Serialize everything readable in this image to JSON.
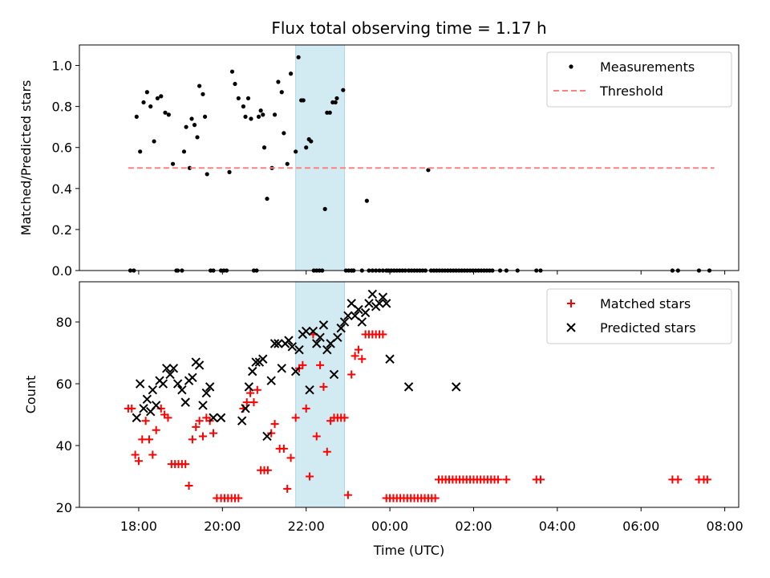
{
  "chart_data": {
    "title": "Flux total observing time = 1.17 h",
    "xlabel": "Time (UTC)",
    "x_ticks": [
      "18:00",
      "20:00",
      "22:00",
      "00:00",
      "02:00",
      "04:00",
      "06:00",
      "08:00"
    ],
    "shaded_span": [
      "21:45",
      "22:55"
    ],
    "shade_color": "#add8e6",
    "panels": [
      {
        "type": "scatter",
        "ylabel": "Matched/Predicted stars",
        "ylim": [
          0,
          1.1
        ],
        "yticks": [
          "0.0",
          "0.2",
          "0.4",
          "0.6",
          "0.8",
          "1.0"
        ],
        "legend_position": "top-right",
        "series": [
          {
            "name": "Measurements",
            "marker": "dot",
            "color": "#000000",
            "x": [
              "17:48",
              "17:53",
              "17:57",
              "18:02",
              "18:07",
              "18:12",
              "18:17",
              "18:22",
              "18:27",
              "18:32",
              "18:38",
              "18:43",
              "18:49",
              "18:54",
              "18:56",
              "19:02",
              "19:05",
              "19:08",
              "19:13",
              "19:16",
              "19:20",
              "19:24",
              "19:27",
              "19:32",
              "19:35",
              "19:38",
              "19:43",
              "19:47",
              "19:58",
              "20:02",
              "20:06",
              "20:10",
              "20:14",
              "20:18",
              "20:23",
              "20:30",
              "20:33",
              "20:37",
              "20:41",
              "20:45",
              "20:49",
              "20:52",
              "20:55",
              "20:58",
              "21:00",
              "21:04",
              "21:11",
              "21:15",
              "21:20",
              "21:25",
              "21:28",
              "21:33",
              "21:38",
              "21:45",
              "21:49",
              "21:53",
              "21:56",
              "22:00",
              "22:04",
              "22:07",
              "22:11",
              "22:15",
              "22:19",
              "22:23",
              "22:27",
              "22:30",
              "22:34",
              "22:38",
              "22:42",
              "22:44",
              "22:53",
              "22:57",
              "23:01",
              "23:05",
              "23:08",
              "23:20",
              "23:27",
              "23:30",
              "23:35",
              "23:40",
              "23:45",
              "23:50",
              "23:55",
              "23:58",
              "00:02",
              "00:06",
              "00:10",
              "00:14",
              "00:18",
              "00:22",
              "00:27",
              "00:31",
              "00:35",
              "00:39",
              "00:43",
              "00:47",
              "00:51",
              "00:55",
              "00:59",
              "01:03",
              "01:07",
              "01:11",
              "01:15",
              "01:19",
              "01:23",
              "01:27",
              "01:31",
              "01:35",
              "01:39",
              "01:43",
              "01:47",
              "01:51",
              "01:55",
              "01:59",
              "02:03",
              "02:07",
              "02:11",
              "02:15",
              "02:19",
              "02:23",
              "02:27",
              "02:38",
              "02:47",
              "03:03",
              "03:30",
              "03:36",
              "06:45",
              "06:53",
              "07:23",
              "07:38"
            ],
            "y": [
              0,
              0,
              0.75,
              0.58,
              0.82,
              0.87,
              0.8,
              0.63,
              0.84,
              0.85,
              0.77,
              0.76,
              0.52,
              0,
              0,
              0,
              0.58,
              0.7,
              0.5,
              0.74,
              0.71,
              0.65,
              0.9,
              0.86,
              0.75,
              0.47,
              0,
              0,
              0,
              0,
              0,
              0.48,
              0.97,
              0.91,
              0.84,
              0.8,
              0.75,
              0.84,
              0.74,
              0,
              0,
              0.75,
              0.78,
              0.76,
              0.6,
              0.35,
              0.5,
              0.76,
              0.92,
              0.87,
              0.67,
              0.52,
              0.96,
              0.58,
              1.04,
              0.83,
              0.83,
              0.6,
              0.64,
              0.63,
              0,
              0,
              0,
              0,
              0.3,
              0.77,
              0.77,
              0.82,
              0.82,
              0.84,
              0.88,
              0,
              0,
              0,
              0,
              0,
              0.34,
              0,
              0,
              0,
              0,
              0,
              0,
              0,
              0,
              0,
              0,
              0,
              0,
              0,
              0,
              0,
              0,
              0,
              0,
              0,
              0,
              0.49,
              0,
              0,
              0,
              0,
              0,
              0,
              0,
              0,
              0,
              0,
              0,
              0,
              0,
              0,
              0,
              0,
              0,
              0,
              0,
              0,
              0,
              0,
              0,
              0,
              0,
              0,
              0,
              0,
              0,
              0,
              0,
              0
            ]
          },
          {
            "name": "Threshold",
            "marker": "dashed-line",
            "color": "#ff8080",
            "x": [
              "17:45",
              "07:45"
            ],
            "y": [
              0.5,
              0.5
            ]
          }
        ]
      },
      {
        "type": "scatter",
        "ylabel": "Count",
        "ylim": [
          20,
          93
        ],
        "yticks": [
          "20",
          "40",
          "60",
          "80"
        ],
        "legend_position": "top-right",
        "series": [
          {
            "name": "Matched stars",
            "marker": "plus",
            "color": "#ff0000",
            "x": [
              "17:45",
              "17:50",
              "17:55",
              "18:00",
              "18:05",
              "18:10",
              "18:15",
              "18:20",
              "18:25",
              "18:32",
              "18:37",
              "18:42",
              "18:47",
              "18:52",
              "18:57",
              "19:02",
              "19:07",
              "19:12",
              "19:17",
              "19:22",
              "19:27",
              "19:32",
              "19:37",
              "19:42",
              "19:47",
              "19:52",
              "19:58",
              "20:03",
              "20:08",
              "20:13",
              "20:18",
              "20:23",
              "20:30",
              "20:35",
              "20:40",
              "20:45",
              "20:50",
              "20:55",
              "21:00",
              "21:05",
              "21:10",
              "21:15",
              "21:22",
              "21:28",
              "21:33",
              "21:38",
              "21:45",
              "21:50",
              "21:55",
              "22:00",
              "22:05",
              "22:10",
              "22:15",
              "22:20",
              "22:25",
              "22:30",
              "22:35",
              "22:40",
              "22:45",
              "22:50",
              "22:55",
              "23:00",
              "23:05",
              "23:10",
              "23:15",
              "23:20",
              "23:25",
              "23:30",
              "23:35",
              "23:40",
              "23:45",
              "23:50",
              "23:55",
              "00:00",
              "00:05",
              "00:10",
              "00:15",
              "00:20",
              "00:25",
              "00:30",
              "00:35",
              "00:40",
              "00:45",
              "00:50",
              "00:55",
              "01:00",
              "01:05",
              "01:10",
              "01:15",
              "01:20",
              "01:25",
              "01:30",
              "01:35",
              "01:40",
              "01:45",
              "01:50",
              "01:55",
              "02:00",
              "02:05",
              "02:10",
              "02:15",
              "02:20",
              "02:25",
              "02:30",
              "02:35",
              "02:47",
              "03:30",
              "03:36",
              "06:45",
              "06:53",
              "07:23",
              "07:30",
              "07:35"
            ],
            "y": [
              52,
              52,
              37,
              35,
              42,
              48,
              42,
              37,
              45,
              52,
              50,
              49,
              34,
              34,
              34,
              34,
              34,
              27,
              42,
              46,
              48,
              43,
              49,
              48,
              44,
              23,
              23,
              23,
              23,
              23,
              23,
              23,
              52,
              54,
              57,
              54,
              58,
              32,
              32,
              32,
              44,
              47,
              39,
              39,
              26,
              36,
              49,
              65,
              66,
              52,
              30,
              76,
              43,
              66,
              59,
              38,
              48,
              49,
              49,
              49,
              49,
              24,
              63,
              69,
              71,
              68,
              76,
              76,
              76,
              76,
              76,
              76,
              23,
              23,
              23,
              23,
              23,
              23,
              23,
              23,
              23,
              23,
              23,
              23,
              23,
              23,
              23,
              29,
              29,
              29,
              29,
              29,
              29,
              29,
              29,
              29,
              29,
              29,
              29,
              29,
              29,
              29,
              29,
              29,
              29,
              29,
              29,
              29,
              29,
              29,
              29,
              29,
              29
            ]
          },
          {
            "name": "Predicted stars",
            "marker": "x",
            "color": "#000000",
            "x": [
              "17:57",
              "18:02",
              "18:07",
              "18:12",
              "18:17",
              "18:20",
              "18:25",
              "18:30",
              "18:35",
              "18:40",
              "18:45",
              "18:50",
              "18:56",
              "19:02",
              "19:07",
              "19:12",
              "19:17",
              "19:22",
              "19:27",
              "19:32",
              "19:37",
              "19:42",
              "19:47",
              "19:58",
              "20:28",
              "20:33",
              "20:38",
              "20:43",
              "20:48",
              "20:53",
              "20:58",
              "21:04",
              "21:10",
              "21:15",
              "21:20",
              "21:25",
              "21:30",
              "21:35",
              "21:40",
              "21:45",
              "21:50",
              "21:55",
              "22:00",
              "22:05",
              "22:10",
              "22:15",
              "22:20",
              "22:25",
              "22:30",
              "22:35",
              "22:40",
              "22:45",
              "22:50",
              "22:55",
              "23:00",
              "23:05",
              "23:10",
              "23:15",
              "23:20",
              "23:25",
              "23:30",
              "23:35",
              "23:40",
              "23:45",
              "23:50",
              "23:55",
              "00:00",
              "00:27",
              "01:35"
            ],
            "y": [
              49,
              60,
              52,
              55,
              51,
              58,
              53,
              61,
              60,
              65,
              63,
              65,
              60,
              58,
              54,
              61,
              62,
              67,
              66,
              53,
              57,
              59,
              49,
              49,
              48,
              52,
              59,
              64,
              67,
              67,
              68,
              43,
              61,
              73,
              73,
              65,
              73,
              74,
              72,
              64,
              71,
              76,
              77,
              58,
              77,
              73,
              75,
              79,
              71,
              73,
              63,
              75,
              78,
              80,
              82,
              86,
              82,
              84,
              80,
              83,
              86,
              89,
              85,
              86,
              88,
              86,
              68,
              59,
              59
            ]
          }
        ]
      }
    ]
  }
}
